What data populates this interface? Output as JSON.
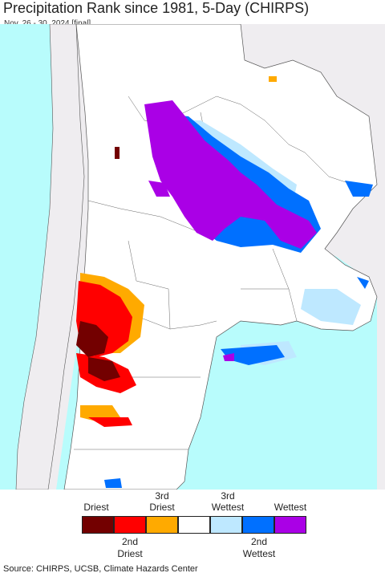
{
  "header": {
    "title": "Precipitation Rank since 1981, 5-Day (CHIRPS)",
    "subtitle": "Nov. 26 - 30, 2024 [final]"
  },
  "legend": {
    "categories": [
      {
        "label": "Driest",
        "color": "#730000"
      },
      {
        "label": "2nd Driest",
        "color": "#ff0000"
      },
      {
        "label": "3rd Driest",
        "color": "#ffaa00"
      },
      {
        "label": "",
        "color": "#ffffff"
      },
      {
        "label": "3rd Wettest",
        "color": "#bee8ff"
      },
      {
        "label": "2nd Wettest",
        "color": "#0070ff"
      },
      {
        "label": "Wettest",
        "color": "#aa00e6"
      }
    ],
    "top_labels": {
      "driest": "Driest",
      "third_driest_1": "3rd",
      "third_driest_2": "Driest",
      "third_wettest_1": "3rd",
      "third_wettest_2": "Wettest",
      "wettest": "Wettest"
    },
    "bottom_labels": {
      "second_driest_1": "2nd",
      "second_driest_2": "Driest",
      "second_wettest_1": "2nd",
      "second_wettest_2": "Wettest"
    }
  },
  "colors": {
    "ocean": "#b8fcfc",
    "outside_land": "#efedf0",
    "land": "#ffffff",
    "border": "#555555"
  },
  "footer": {
    "source": "Source: CHIRPS, UCSB, Climate Hazards Center"
  }
}
